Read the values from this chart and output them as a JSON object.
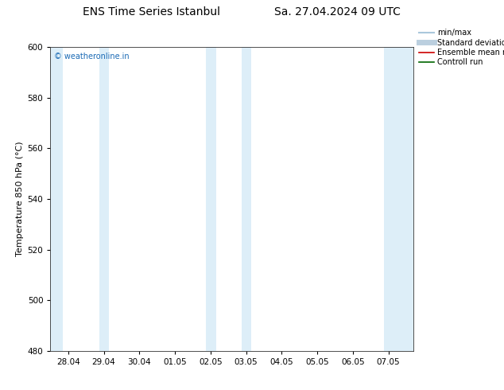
{
  "title_left": "ENS Time Series Istanbul",
  "title_right": "Sa. 27.04.2024 09 UTC",
  "ylabel": "Temperature 850 hPa (°C)",
  "ylim": [
    480,
    600
  ],
  "yticks": [
    480,
    500,
    520,
    540,
    560,
    580,
    600
  ],
  "xtick_labels": [
    "28.04",
    "29.04",
    "30.04",
    "01.05",
    "02.05",
    "03.05",
    "04.05",
    "05.05",
    "06.05",
    "07.05"
  ],
  "xtick_positions": [
    0,
    1,
    2,
    3,
    4,
    5,
    6,
    7,
    8,
    9
  ],
  "xlim": [
    -0.5,
    9.7
  ],
  "shaded_bands": [
    {
      "xmin": -0.5,
      "xmax": -0.15
    },
    {
      "xmin": 0.88,
      "xmax": 1.15
    },
    {
      "xmin": 3.88,
      "xmax": 4.15
    },
    {
      "xmin": 4.88,
      "xmax": 5.15
    },
    {
      "xmin": 8.88,
      "xmax": 9.7
    }
  ],
  "band_color": "#ddeef8",
  "watermark": "© weatheronline.in",
  "watermark_color": "#1a6ab5",
  "legend_entries": [
    {
      "label": "min/max",
      "color": "#aac8dc",
      "lw": 1.5
    },
    {
      "label": "Standard deviation",
      "color": "#bbcfdf",
      "lw": 5
    },
    {
      "label": "Ensemble mean run",
      "color": "#cc0000",
      "lw": 1.2
    },
    {
      "label": "Controll run",
      "color": "#006600",
      "lw": 1.2
    }
  ],
  "bg_color": "#ffffff",
  "spine_color": "#333333",
  "tick_color": "#333333",
  "title_fontsize": 10,
  "ylabel_fontsize": 8,
  "tick_fontsize": 7.5,
  "watermark_fontsize": 7,
  "legend_fontsize": 7
}
